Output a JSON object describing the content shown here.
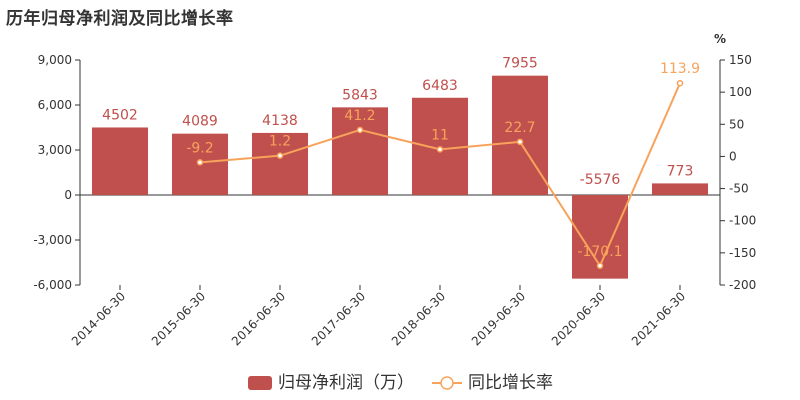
{
  "title": "历年归母净利润及同比增长率",
  "chart_data": {
    "type": "bar",
    "categories": [
      "2014-06-30",
      "2015-06-30",
      "2016-06-30",
      "2017-06-30",
      "2018-06-30",
      "2019-06-30",
      "2020-06-30",
      "2021-06-30"
    ],
    "series": [
      {
        "name": "归母净利润（万）",
        "type": "bar",
        "axis": "left",
        "color": "#c0504d",
        "values": [
          4502,
          4089,
          4138,
          5843,
          6483,
          7955,
          -5576,
          773
        ]
      },
      {
        "name": "同比增长率",
        "type": "line",
        "axis": "right",
        "color": "#f7a35c",
        "values": [
          null,
          -9.2,
          1.2,
          41.2,
          11,
          22.7,
          -170.1,
          113.9
        ]
      }
    ],
    "y_left": {
      "ylim": [
        -6000,
        9000
      ],
      "ticks": [
        9000,
        6000,
        3000,
        0,
        -3000,
        -6000
      ],
      "tick_labels": [
        "9,000",
        "6,000",
        "3,000",
        "0",
        "-3,000",
        "-6,000"
      ]
    },
    "y_right": {
      "label": "%",
      "ylim": [
        -200,
        150
      ],
      "ticks": [
        150,
        100,
        50,
        0,
        -50,
        -100,
        -150,
        -200
      ],
      "tick_labels": [
        "150",
        "100",
        "50",
        "0",
        "-50",
        "-100",
        "-150",
        "-200"
      ]
    },
    "legend_position": "bottom-center",
    "grid": false
  }
}
